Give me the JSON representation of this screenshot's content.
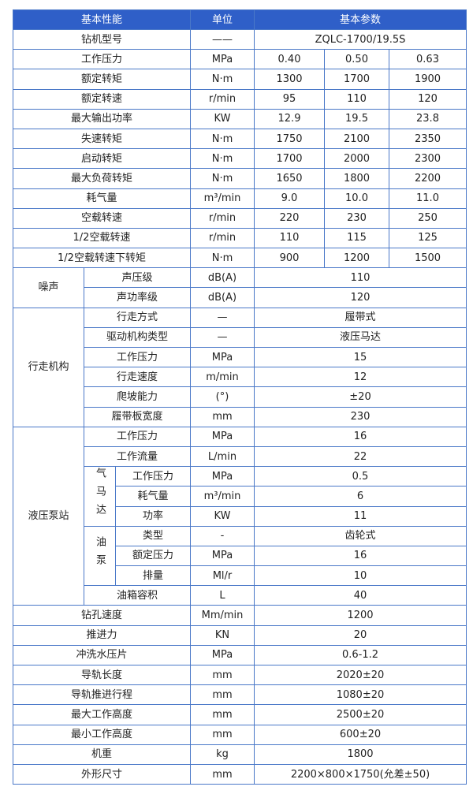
{
  "header": {
    "col1": "基本性能",
    "col2": "单位",
    "col3": "基本参数"
  },
  "brand_color": "#2f5fc8",
  "rows": [
    {
      "label": "钻机型号",
      "unit": "——",
      "values": [
        "ZQLC-1700/19.5S"
      ]
    },
    {
      "label": "工作压力",
      "unit": "MPa",
      "values": [
        "0.40",
        "0.50",
        "0.63"
      ]
    },
    {
      "label": "额定转矩",
      "unit": "N·m",
      "values": [
        "1300",
        "1700",
        "1900"
      ]
    },
    {
      "label": "额定转速",
      "unit": "r/min",
      "values": [
        "95",
        "110",
        "120"
      ]
    },
    {
      "label": "最大输出功率",
      "unit": "KW",
      "values": [
        "12.9",
        "19.5",
        "23.8"
      ]
    },
    {
      "label": "失速转矩",
      "unit": "N·m",
      "values": [
        "1750",
        "2100",
        "2350"
      ]
    },
    {
      "label": "启动转矩",
      "unit": "N·m",
      "values": [
        "1700",
        "2000",
        "2300"
      ]
    },
    {
      "label": "最大负荷转矩",
      "unit": "N·m",
      "values": [
        "1650",
        "1800",
        "2200"
      ]
    },
    {
      "label": "耗气量",
      "unit": "m³/min",
      "values": [
        "9.0",
        "10.0",
        "11.0"
      ]
    },
    {
      "label": "空载转速",
      "unit": "r/min",
      "values": [
        "220",
        "230",
        "250"
      ]
    },
    {
      "label": "1/2空载转速",
      "unit": "r/min",
      "values": [
        "110",
        "115",
        "125"
      ]
    },
    {
      "label": "1/2空载转速下转矩",
      "unit": "N·m",
      "values": [
        "900",
        "1200",
        "1500"
      ]
    },
    {
      "group": "噪声",
      "items": [
        {
          "label": "声压级",
          "unit": "dB(A)",
          "values": [
            "110"
          ]
        },
        {
          "label": "声功率级",
          "unit": "dB(A)",
          "values": [
            "120"
          ]
        }
      ]
    },
    {
      "group": "行走机构",
      "items": [
        {
          "label": "行走方式",
          "unit": "—",
          "values": [
            "履带式"
          ]
        },
        {
          "label": "驱动机构类型",
          "unit": "—",
          "values": [
            "液压马达"
          ]
        },
        {
          "label": "工作压力",
          "unit": "MPa",
          "values": [
            "15"
          ]
        },
        {
          "label": "行走速度",
          "unit": "m/min",
          "values": [
            "12"
          ]
        },
        {
          "label": "爬坡能力",
          "unit": "(°)",
          "values": [
            "±20"
          ]
        },
        {
          "label": "履带板宽度",
          "unit": "mm",
          "values": [
            "230"
          ]
        }
      ]
    },
    {
      "group": "液压泵站",
      "items": [
        {
          "label": "工作压力",
          "unit": "MPa",
          "values": [
            "16"
          ]
        },
        {
          "label": "工作流量",
          "unit": "L/min",
          "values": [
            "22"
          ]
        },
        {
          "subgroup": "气马达",
          "items": [
            {
              "label": "工作压力",
              "unit": "MPa",
              "values": [
                "0.5"
              ]
            },
            {
              "label": "耗气量",
              "unit": "m³/min",
              "values": [
                "6"
              ]
            },
            {
              "label": "功率",
              "unit": "KW",
              "values": [
                "11"
              ]
            }
          ]
        },
        {
          "subgroup": "油泵",
          "items": [
            {
              "label": "类型",
              "unit": "-",
              "values": [
                "齿轮式"
              ]
            },
            {
              "label": "额定压力",
              "unit": "MPa",
              "values": [
                "16"
              ]
            },
            {
              "label": "排量",
              "unit": "Ml/r",
              "values": [
                "10"
              ]
            }
          ]
        },
        {
          "label": "油箱容积",
          "unit": "L",
          "values": [
            "40"
          ]
        }
      ]
    },
    {
      "label": "钻孔速度",
      "unit": "Mm/min",
      "values": [
        "1200"
      ]
    },
    {
      "label": "推进力",
      "unit": "KN",
      "values": [
        "20"
      ]
    },
    {
      "label": "冲洗水压片",
      "unit": "MPa",
      "values": [
        "0.6-1.2"
      ]
    },
    {
      "label": "导轨长度",
      "unit": "mm",
      "values": [
        "2020±20"
      ]
    },
    {
      "label": "导轨推进行程",
      "unit": "mm",
      "values": [
        "1080±20"
      ]
    },
    {
      "label": "最大工作高度",
      "unit": "mm",
      "values": [
        "2500±20"
      ]
    },
    {
      "label": "最小工作高度",
      "unit": "mm",
      "values": [
        "600±20"
      ]
    },
    {
      "label": "机重",
      "unit": "kg",
      "values": [
        "1800"
      ]
    },
    {
      "label": "外形尺寸",
      "unit": "mm",
      "values": [
        "2200×800×1750(允差±50)"
      ]
    }
  ]
}
